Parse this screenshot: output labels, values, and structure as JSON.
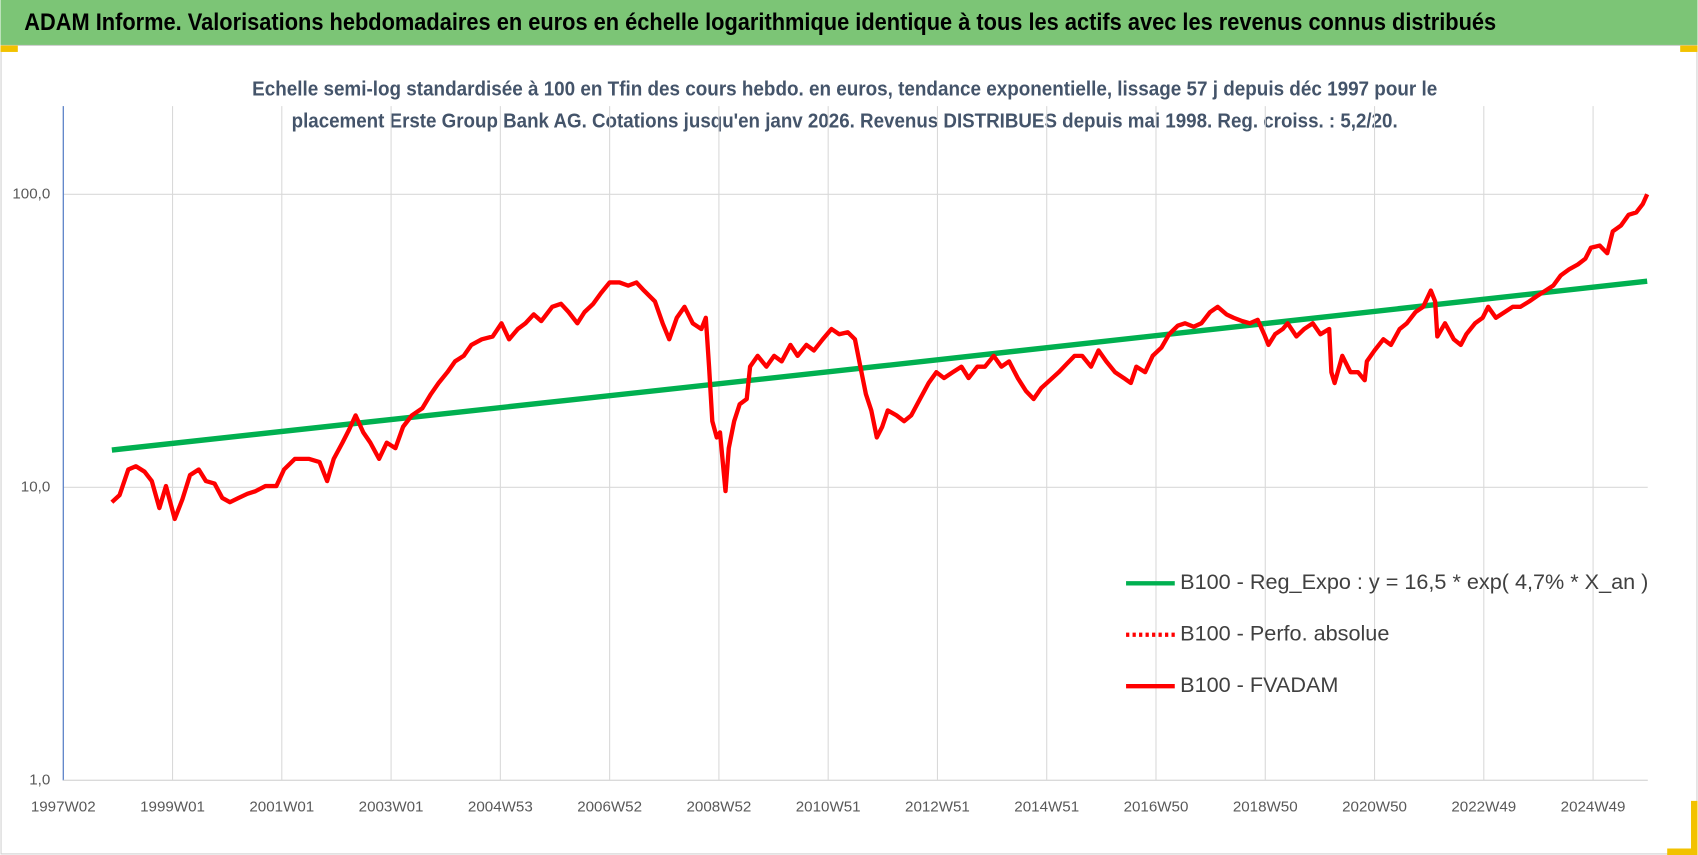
{
  "chart_data": {
    "type": "line",
    "title": "ADAM Informe. Valorisations hebdomadaires en euros en échelle logarithmique identique à tous les actifs avec les revenus connus distribués",
    "subtitle": [
      "Echelle semi-log standardisée à 100 en Tfin des cours hebdo. en euros, tendance exponentielle, lissage 57 j depuis déc 1997 pour le",
      "placement Erste Group Bank AG. Cotations jusqu'en janv 2026. Revenus DISTRIBUES depuis mai 1998. Reg. croiss. : 5,2/20."
    ],
    "log_y": true,
    "grid": true,
    "legend": "lower right",
    "xlim": [
      1997,
      2026
    ],
    "xticks": [
      {
        "value": 1997,
        "label": "1997W02"
      },
      {
        "value": 1999,
        "label": "1999W01"
      },
      {
        "value": 2001,
        "label": "2001W01"
      },
      {
        "value": 2003,
        "label": "2003W01"
      },
      {
        "value": 2005,
        "label": "2004W53"
      },
      {
        "value": 2007,
        "label": "2006W52"
      },
      {
        "value": 2009,
        "label": "2008W52"
      },
      {
        "value": 2011,
        "label": "2010W51"
      },
      {
        "value": 2013,
        "label": "2012W51"
      },
      {
        "value": 2015,
        "label": "2014W51"
      },
      {
        "value": 2017,
        "label": "2016W50"
      },
      {
        "value": 2019,
        "label": "2018W50"
      },
      {
        "value": 2021,
        "label": "2020W50"
      },
      {
        "value": 2023,
        "label": "2022W49"
      },
      {
        "value": 2025,
        "label": "2024W49"
      }
    ],
    "ylim": [
      1,
      200
    ],
    "yticks": [
      {
        "value": 1,
        "label": "1,0"
      },
      {
        "value": 10,
        "label": "10,0"
      },
      {
        "value": 100,
        "label": "100,0"
      }
    ],
    "series": [
      {
        "name": "B100 - Reg_Expo : y = 16,5 * exp( 4,7% *  X_an )",
        "color": "#00b050",
        "line": "solid",
        "x": [
          1997.89,
          2011.94,
          2025.99
        ],
        "values": [
          13.4,
          25.9,
          50.5
        ]
      },
      {
        "name": "B100 - Perfo. absolue",
        "color": "#ff0000",
        "line": "dotted"
      },
      {
        "name": "B100 - FVADAM",
        "color": "#ff0000",
        "line": "solid",
        "x": [
          1997.89,
          1998.03,
          1998.19,
          1998.33,
          1998.49,
          1998.62,
          1998.76,
          1998.88,
          1999.04,
          1999.18,
          1999.32,
          1999.48,
          1999.61,
          1999.77,
          1999.91,
          2000.05,
          2000.21,
          2000.37,
          2000.52,
          2000.7,
          2000.9,
          2001.04,
          2001.24,
          2001.5,
          2001.69,
          2001.83,
          2001.95,
          2002.11,
          2002.23,
          2002.35,
          2002.49,
          2002.62,
          2002.78,
          2002.92,
          2003.08,
          2003.22,
          2003.38,
          2003.57,
          2003.73,
          2003.87,
          2004.03,
          2004.17,
          2004.33,
          2004.47,
          2004.66,
          2004.86,
          2005.02,
          2005.16,
          2005.32,
          2005.46,
          2005.61,
          2005.75,
          2005.95,
          2006.11,
          2006.25,
          2006.41,
          2006.54,
          2006.7,
          2006.84,
          2007.0,
          2007.18,
          2007.34,
          2007.49,
          2007.63,
          2007.83,
          2007.97,
          2008.09,
          2008.23,
          2008.37,
          2008.52,
          2008.68,
          2008.76,
          2008.82,
          2008.88,
          2008.96,
          2009.02,
          2009.12,
          2009.18,
          2009.28,
          2009.38,
          2009.51,
          2009.57,
          2009.71,
          2009.87,
          2010.01,
          2010.15,
          2010.31,
          2010.44,
          2010.6,
          2010.74,
          2010.9,
          2011.06,
          2011.2,
          2011.36,
          2011.49,
          2011.59,
          2011.69,
          2011.79,
          2011.89,
          2011.99,
          2012.09,
          2012.25,
          2012.39,
          2012.52,
          2012.68,
          2012.84,
          2012.98,
          2013.12,
          2013.28,
          2013.44,
          2013.57,
          2013.73,
          2013.87,
          2014.03,
          2014.17,
          2014.31,
          2014.47,
          2014.62,
          2014.76,
          2014.9,
          2015.06,
          2015.22,
          2015.36,
          2015.51,
          2015.65,
          2015.81,
          2015.95,
          2016.09,
          2016.25,
          2016.41,
          2016.54,
          2016.64,
          2016.8,
          2016.94,
          2017.1,
          2017.24,
          2017.4,
          2017.53,
          2017.69,
          2017.83,
          2017.99,
          2018.13,
          2018.29,
          2018.42,
          2018.58,
          2018.72,
          2018.86,
          2018.98,
          2019.06,
          2019.18,
          2019.32,
          2019.41,
          2019.57,
          2019.71,
          2019.87,
          2020.01,
          2020.17,
          2020.21,
          2020.27,
          2020.41,
          2020.56,
          2020.7,
          2020.82,
          2020.86,
          2021.0,
          2021.16,
          2021.3,
          2021.46,
          2021.59,
          2021.75,
          2021.89,
          2022.03,
          2022.11,
          2022.15,
          2022.29,
          2022.45,
          2022.58,
          2022.68,
          2022.84,
          2022.98,
          2023.08,
          2023.22,
          2023.38,
          2023.53,
          2023.67,
          2023.83,
          2023.97,
          2024.13,
          2024.27,
          2024.41,
          2024.56,
          2024.72,
          2024.86,
          2024.96,
          2025.12,
          2025.26,
          2025.36,
          2025.51,
          2025.65,
          2025.79,
          2025.91,
          2025.99
        ],
        "values": [
          8.9,
          9.4,
          11.5,
          11.8,
          11.3,
          10.5,
          8.5,
          10.1,
          7.8,
          9.1,
          11.0,
          11.5,
          10.5,
          10.3,
          9.2,
          8.9,
          9.2,
          9.5,
          9.7,
          10.1,
          10.1,
          11.5,
          12.5,
          12.5,
          12.2,
          10.5,
          12.5,
          14.2,
          15.7,
          17.6,
          15.4,
          14.2,
          12.5,
          14.2,
          13.6,
          16.1,
          17.6,
          18.6,
          20.8,
          22.7,
          24.7,
          26.9,
          28.1,
          30.6,
          32.0,
          32.7,
          36.3,
          32.0,
          34.7,
          36.3,
          38.9,
          36.9,
          41.3,
          42.3,
          39.6,
          36.3,
          39.6,
          42.3,
          46.0,
          50.0,
          50.0,
          48.8,
          50.0,
          46.9,
          43.1,
          36.3,
          32.0,
          37.9,
          41.3,
          36.3,
          34.7,
          37.9,
          25.8,
          16.8,
          14.8,
          15.4,
          9.7,
          13.6,
          16.8,
          19.2,
          20.0,
          25.8,
          28.1,
          25.8,
          28.1,
          26.9,
          30.6,
          28.1,
          30.6,
          29.3,
          32.0,
          34.7,
          33.3,
          33.8,
          32.0,
          25.8,
          20.8,
          18.3,
          14.8,
          16.1,
          18.3,
          17.6,
          16.8,
          17.6,
          20.0,
          22.7,
          24.7,
          23.6,
          24.7,
          25.8,
          23.6,
          25.8,
          25.8,
          28.1,
          25.8,
          26.9,
          23.6,
          21.3,
          20.0,
          21.8,
          23.2,
          24.7,
          26.3,
          28.1,
          28.1,
          25.8,
          29.3,
          26.9,
          24.7,
          23.6,
          22.7,
          25.8,
          24.7,
          28.1,
          30.0,
          33.3,
          35.6,
          36.3,
          35.3,
          36.3,
          39.6,
          41.3,
          38.9,
          37.9,
          36.9,
          36.3,
          37.3,
          33.3,
          30.6,
          33.3,
          34.7,
          36.3,
          32.7,
          34.7,
          36.3,
          33.3,
          34.7,
          24.7,
          22.7,
          28.1,
          24.7,
          24.7,
          23.2,
          26.9,
          29.3,
          32.0,
          30.6,
          34.7,
          36.3,
          39.6,
          41.3,
          46.9,
          43.1,
          32.7,
          36.3,
          32.0,
          30.6,
          33.3,
          36.3,
          37.9,
          41.3,
          37.9,
          39.6,
          41.3,
          41.3,
          43.1,
          44.9,
          46.9,
          48.8,
          52.9,
          55.4,
          57.6,
          60.3,
          65.7,
          66.8,
          62.9,
          74.7,
          78.2,
          85.1,
          86.7,
          92.7,
          100.0
        ]
      }
    ]
  }
}
